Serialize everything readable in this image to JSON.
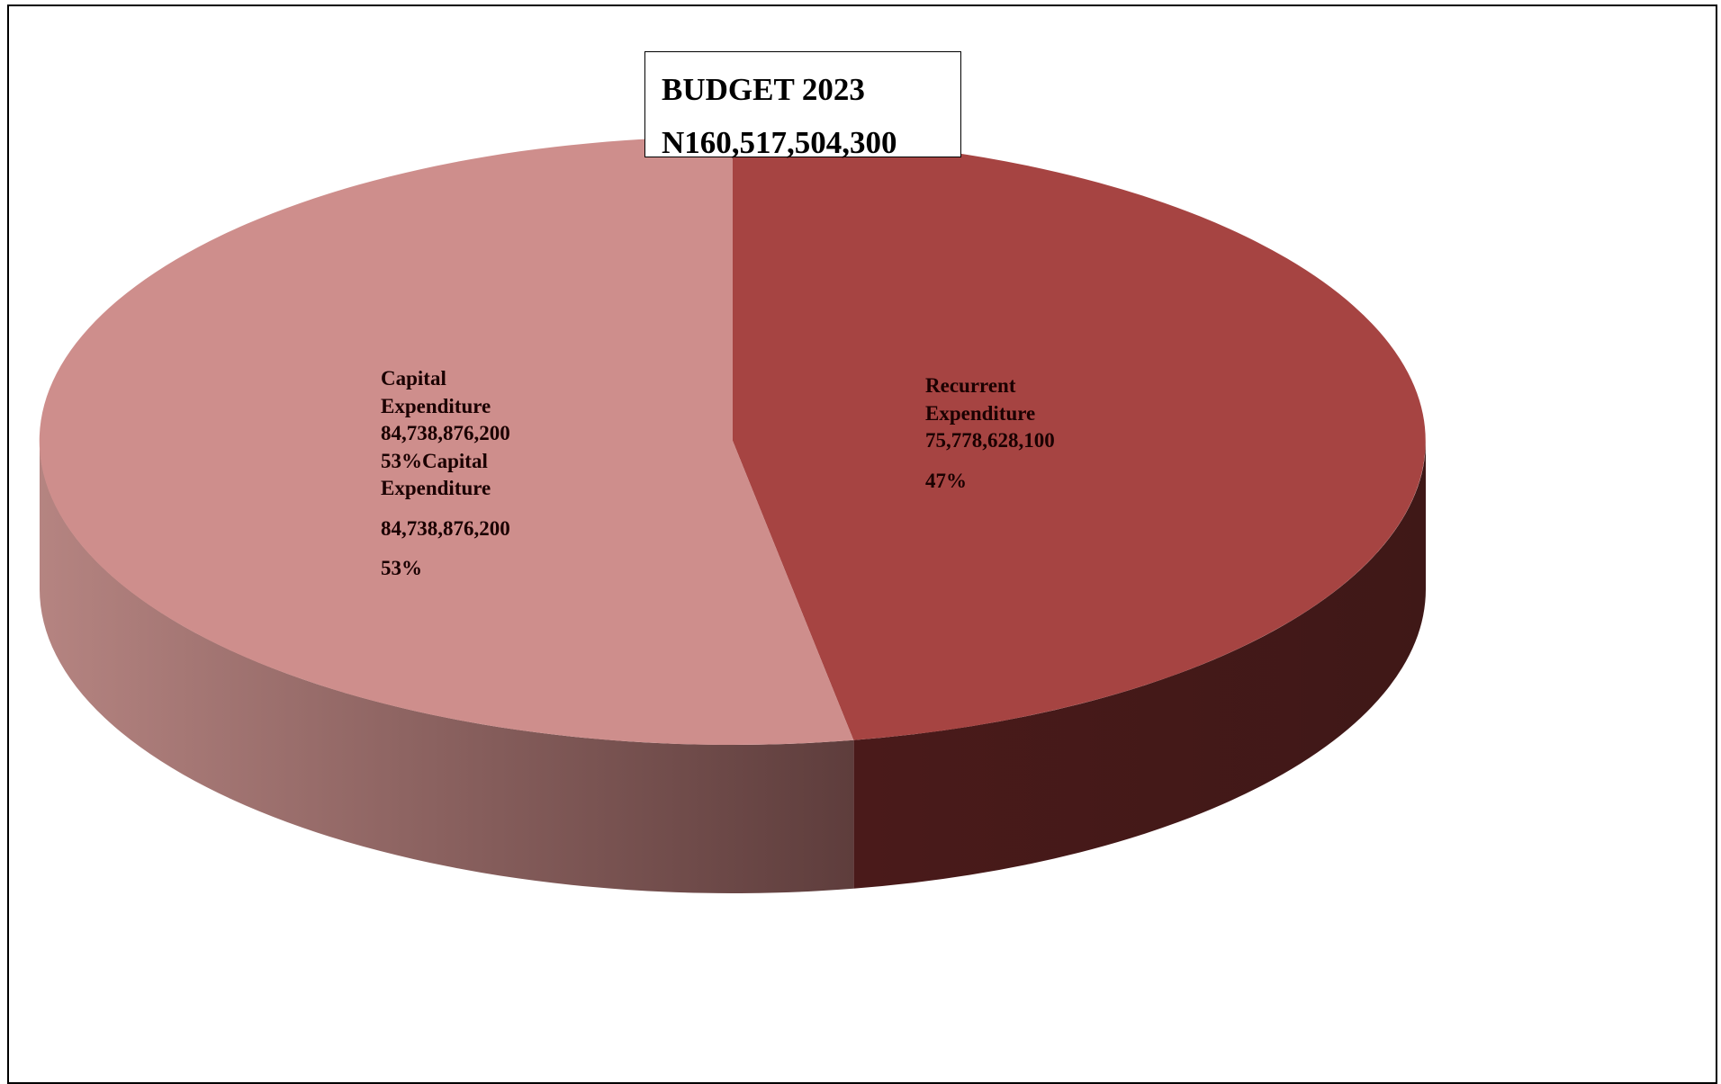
{
  "chart_data": {
    "type": "pie",
    "title": "BUDGET 2023",
    "subtitle": "N160,517,504,300",
    "slices": [
      {
        "name": "Recurrent Expenditure",
        "value": 75778628100,
        "value_label": "75,778,628,100",
        "percent": 47,
        "percent_label": "47%",
        "top_color": "#A64442",
        "side_color": "#451A1A"
      },
      {
        "name": "Capital Expenditure",
        "value": 84738876200,
        "value_label": "84,738,876,200",
        "percent": 53,
        "percent_label": "53%",
        "top_color": "#CE8E8C",
        "side_color": "#A57978"
      }
    ],
    "style": "3d"
  },
  "labels": {
    "capital": {
      "line1": "Capital",
      "line2": "Expenditure",
      "line3": "84,738,876,200",
      "line4": "53%Capital",
      "line5": "Expenditure",
      "line6": "84,738,876,200",
      "line7": "53%"
    },
    "recurrent": {
      "line1": "Recurrent",
      "line2": "Expenditure",
      "line3": "75,778,628,100",
      "line4": "47%"
    }
  }
}
